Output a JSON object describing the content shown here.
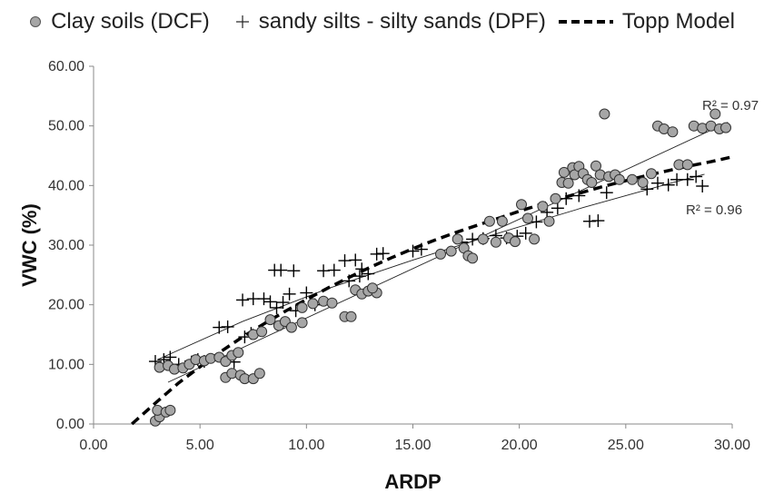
{
  "chart_data": {
    "type": "scatter",
    "title": "",
    "xlabel": "ARDP",
    "ylabel": "VWC (%)",
    "xlim": [
      0,
      30
    ],
    "ylim": [
      0,
      60
    ],
    "x_ticks": [
      "0.00",
      "5.00",
      "10.00",
      "15.00",
      "20.00",
      "25.00",
      "30.00"
    ],
    "y_ticks": [
      "0.00",
      "10.00",
      "20.00",
      "30.00",
      "40.00",
      "50.00",
      "60.00"
    ],
    "grid": false,
    "legend_position": "top",
    "series": [
      {
        "name": "Clay soils (DCF)",
        "marker": "circle",
        "color": "#a6a6a6",
        "points": [
          [
            2.9,
            0.5
          ],
          [
            3.1,
            1.2
          ],
          [
            3.0,
            2.3
          ],
          [
            3.4,
            2.0
          ],
          [
            3.6,
            2.3
          ],
          [
            3.1,
            9.5
          ],
          [
            3.5,
            9.8
          ],
          [
            3.8,
            9.2
          ],
          [
            4.2,
            9.4
          ],
          [
            4.5,
            10.0
          ],
          [
            4.8,
            10.8
          ],
          [
            5.2,
            10.6
          ],
          [
            5.5,
            11.0
          ],
          [
            5.9,
            11.2
          ],
          [
            6.2,
            10.5
          ],
          [
            6.5,
            11.5
          ],
          [
            6.8,
            12.0
          ],
          [
            6.2,
            7.8
          ],
          [
            6.5,
            8.5
          ],
          [
            6.9,
            8.2
          ],
          [
            7.1,
            7.6
          ],
          [
            7.5,
            7.6
          ],
          [
            7.8,
            8.5
          ],
          [
            7.5,
            15.0
          ],
          [
            7.9,
            15.5
          ],
          [
            8.3,
            17.5
          ],
          [
            8.7,
            16.5
          ],
          [
            9.0,
            17.2
          ],
          [
            9.3,
            16.2
          ],
          [
            9.8,
            17.0
          ],
          [
            9.8,
            19.5
          ],
          [
            10.3,
            20.2
          ],
          [
            10.8,
            20.6
          ],
          [
            11.2,
            20.3
          ],
          [
            11.8,
            18.0
          ],
          [
            12.1,
            18.0
          ],
          [
            12.3,
            22.5
          ],
          [
            12.6,
            21.8
          ],
          [
            12.9,
            22.3
          ],
          [
            13.3,
            22.0
          ],
          [
            13.1,
            22.8
          ],
          [
            16.3,
            28.5
          ],
          [
            16.8,
            29.0
          ],
          [
            17.1,
            31.0
          ],
          [
            17.4,
            29.5
          ],
          [
            17.6,
            28.2
          ],
          [
            17.8,
            27.8
          ],
          [
            18.3,
            31.0
          ],
          [
            18.6,
            34.0
          ],
          [
            18.9,
            30.5
          ],
          [
            19.2,
            34.0
          ],
          [
            19.5,
            31.2
          ],
          [
            19.8,
            30.6
          ],
          [
            20.1,
            36.8
          ],
          [
            20.4,
            34.5
          ],
          [
            20.7,
            31.0
          ],
          [
            21.1,
            36.5
          ],
          [
            21.4,
            34.0
          ],
          [
            21.7,
            37.8
          ],
          [
            22.0,
            40.5
          ],
          [
            22.1,
            42.2
          ],
          [
            22.3,
            40.4
          ],
          [
            22.5,
            43.0
          ],
          [
            22.6,
            41.8
          ],
          [
            22.8,
            43.2
          ],
          [
            23.0,
            42.0
          ],
          [
            23.2,
            41.0
          ],
          [
            23.4,
            40.5
          ],
          [
            23.6,
            43.3
          ],
          [
            23.8,
            41.8
          ],
          [
            24.2,
            41.5
          ],
          [
            24.5,
            41.8
          ],
          [
            24.7,
            41.0
          ],
          [
            24.0,
            52.0
          ],
          [
            25.3,
            41.0
          ],
          [
            25.8,
            40.5
          ],
          [
            26.2,
            42.0
          ],
          [
            26.5,
            50.0
          ],
          [
            26.8,
            49.5
          ],
          [
            27.2,
            49.0
          ],
          [
            27.5,
            43.5
          ],
          [
            27.9,
            43.5
          ],
          [
            28.2,
            50.0
          ],
          [
            28.6,
            49.6
          ],
          [
            29.0,
            50.0
          ],
          [
            29.2,
            52.0
          ],
          [
            29.4,
            49.5
          ],
          [
            29.7,
            49.7
          ]
        ]
      },
      {
        "name": "sandy silts - silty sands (DPF)",
        "marker": "plus",
        "color": "#000000",
        "points": [
          [
            2.9,
            10.5
          ],
          [
            3.3,
            10.8
          ],
          [
            3.6,
            11.2
          ],
          [
            4.0,
            10.0
          ],
          [
            4.3,
            9.6
          ],
          [
            4.6,
            10.4
          ],
          [
            4.9,
            10.8
          ],
          [
            5.2,
            10.5
          ],
          [
            5.9,
            16.2
          ],
          [
            6.3,
            16.3
          ],
          [
            6.6,
            10.4
          ],
          [
            7.1,
            14.6
          ],
          [
            7.4,
            15.2
          ],
          [
            7.0,
            20.8
          ],
          [
            7.5,
            21.0
          ],
          [
            8.0,
            21.0
          ],
          [
            8.3,
            20.5
          ],
          [
            8.6,
            19.5
          ],
          [
            8.9,
            20.4
          ],
          [
            9.2,
            21.8
          ],
          [
            9.5,
            19.0
          ],
          [
            8.5,
            25.8
          ],
          [
            8.8,
            25.8
          ],
          [
            9.4,
            25.7
          ],
          [
            10.0,
            22.0
          ],
          [
            10.4,
            20.0
          ],
          [
            10.8,
            25.7
          ],
          [
            11.3,
            25.8
          ],
          [
            11.8,
            27.4
          ],
          [
            12.3,
            27.5
          ],
          [
            12.6,
            26.0
          ],
          [
            12.9,
            25.2
          ],
          [
            13.3,
            28.5
          ],
          [
            13.6,
            28.6
          ],
          [
            12.0,
            24.0
          ],
          [
            12.5,
            24.8
          ],
          [
            15.0,
            29.0
          ],
          [
            15.4,
            29.3
          ],
          [
            17.3,
            30.5
          ],
          [
            17.8,
            31.0
          ],
          [
            18.3,
            31.1
          ],
          [
            18.9,
            31.6
          ],
          [
            19.4,
            31.2
          ],
          [
            19.9,
            31.5
          ],
          [
            20.3,
            32.0
          ],
          [
            20.8,
            33.9
          ],
          [
            21.3,
            35.5
          ],
          [
            21.8,
            36.2
          ],
          [
            22.2,
            37.8
          ],
          [
            22.8,
            38.3
          ],
          [
            23.3,
            34.0
          ],
          [
            23.7,
            34.1
          ],
          [
            24.1,
            38.8
          ],
          [
            26.0,
            39.4
          ],
          [
            26.5,
            40.4
          ],
          [
            27.0,
            40.1
          ],
          [
            27.4,
            41.0
          ],
          [
            27.9,
            41.0
          ],
          [
            28.3,
            41.5
          ],
          [
            28.6,
            39.9
          ]
        ]
      },
      {
        "name": "Topp Model",
        "style": "dashed",
        "color": "#000000",
        "x": [
          1.8,
          3,
          4,
          5,
          6,
          7,
          8,
          9,
          10,
          11,
          12,
          13,
          14,
          15,
          16,
          17,
          18,
          19,
          20,
          21,
          22,
          23,
          24,
          25,
          26,
          27,
          28,
          29,
          30
        ],
        "values": [
          0,
          3.8,
          6.9,
          9.6,
          12.2,
          14.6,
          16.8,
          18.9,
          20.9,
          22.8,
          24.6,
          26.3,
          27.9,
          29.4,
          30.8,
          32.1,
          33.3,
          34.5,
          35.7,
          36.8,
          37.9,
          38.9,
          39.9,
          40.8,
          41.7,
          42.5,
          43.3,
          44.0,
          44.8
        ]
      }
    ],
    "trendlines": [
      {
        "series": "Clay soils (DCF)",
        "x": [
          3.5,
          29.8
        ],
        "values": [
          7.0,
          50.6
        ],
        "label": "R² = 0.97"
      },
      {
        "series": "sandy silts - silty sands (DPF)",
        "x": [
          3,
          7,
          11,
          15,
          19,
          23,
          27,
          28.7
        ],
        "values": [
          10.8,
          17.2,
          22.7,
          27.5,
          32.0,
          36.3,
          40.3,
          41.9
        ],
        "label": "R² = 0.96"
      }
    ]
  }
}
